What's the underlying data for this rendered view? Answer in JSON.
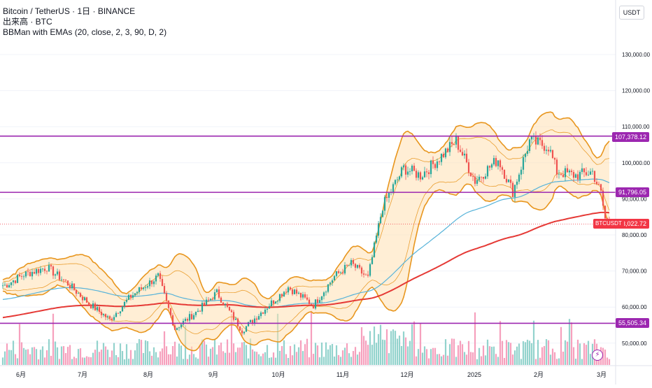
{
  "header": {
    "line1": "Bitcoin / TetherUS · 1日 · BINANCE",
    "line2": "出来高 · BTC",
    "line3": "BBMan with EMAs (20, close, 2, 3, 90, D, 2)"
  },
  "currency_button": "USDT",
  "price_tags": {
    "resistance": "107,378.12",
    "mid": "91,796.05",
    "current": "83,022.72",
    "support": "55,505.34",
    "symbol": "BTCUSDT"
  },
  "colors": {
    "up": "#26a69a",
    "down": "#ef5350",
    "vol_up": "#80cbc4",
    "vol_down": "#f48fb1",
    "band": "#e8961e",
    "band_fill": "#ffe0b2",
    "ema_short": "#57b3d9",
    "ema_long": "#e53935",
    "hline": "#9c27b0"
  },
  "chart_data": {
    "type": "candlestick",
    "title": "Bitcoin / TetherUS · 1日 · BINANCE",
    "y_axis": {
      "ticks": [
        50000,
        60000,
        70000,
        80000,
        90000,
        100000,
        110000,
        120000,
        130000
      ],
      "tick_labels": [
        "50,000.00",
        "60,000.00",
        "70,000.00",
        "80,000.00",
        "90,000.00",
        "100,000.00",
        "110,000.00",
        "120,000.00",
        "130,000.00"
      ],
      "ylim": [
        45000,
        138000
      ]
    },
    "x_axis": {
      "labels": [
        "6月",
        "7月",
        "8月",
        "9月",
        "10月",
        "11月",
        "12月",
        "2025",
        "2月",
        "3月"
      ]
    },
    "horizontal_lines": [
      107378.12,
      91796.05,
      55505.34
    ],
    "current_price": 83022.72,
    "close_anchors": [
      {
        "t": "05-16",
        "v": 66000
      },
      {
        "t": "05-25",
        "v": 69000
      },
      {
        "t": "06-05",
        "v": 71000
      },
      {
        "t": "06-15",
        "v": 66500
      },
      {
        "t": "06-25",
        "v": 61000
      },
      {
        "t": "07-05",
        "v": 56500
      },
      {
        "t": "07-15",
        "v": 63000
      },
      {
        "t": "07-28",
        "v": 68500
      },
      {
        "t": "08-05",
        "v": 54000
      },
      {
        "t": "08-15",
        "v": 58500
      },
      {
        "t": "08-25",
        "v": 64000
      },
      {
        "t": "09-06",
        "v": 53500
      },
      {
        "t": "09-15",
        "v": 58500
      },
      {
        "t": "09-28",
        "v": 65500
      },
      {
        "t": "10-10",
        "v": 60500
      },
      {
        "t": "10-20",
        "v": 68500
      },
      {
        "t": "10-28",
        "v": 72000
      },
      {
        "t": "11-05",
        "v": 68000
      },
      {
        "t": "11-12",
        "v": 88000
      },
      {
        "t": "11-22",
        "v": 98500
      },
      {
        "t": "11-30",
        "v": 96500
      },
      {
        "t": "12-05",
        "v": 99000
      },
      {
        "t": "12-17",
        "v": 106000
      },
      {
        "t": "12-26",
        "v": 95000
      },
      {
        "t": "01-06",
        "v": 101000
      },
      {
        "t": "01-13",
        "v": 92000
      },
      {
        "t": "01-21",
        "v": 106000
      },
      {
        "t": "01-30",
        "v": 104500
      },
      {
        "t": "02-03",
        "v": 97500
      },
      {
        "t": "02-12",
        "v": 96500
      },
      {
        "t": "02-20",
        "v": 97500
      },
      {
        "t": "02-24",
        "v": 91500
      },
      {
        "t": "02-26",
        "v": 84500
      },
      {
        "t": "02-28",
        "v": 83000
      }
    ],
    "series": [
      {
        "name": "BTCUSDT",
        "kind": "candles"
      },
      {
        "name": "",
        "kind": "bollinger_upper_outer"
      },
      {
        "name": "",
        "kind": "bollinger_inner"
      },
      {
        "name": "",
        "kind": "ema_short"
      },
      {
        "name": "",
        "kind": "ema_long"
      },
      {
        "name": "出来高",
        "kind": "volume"
      }
    ]
  }
}
